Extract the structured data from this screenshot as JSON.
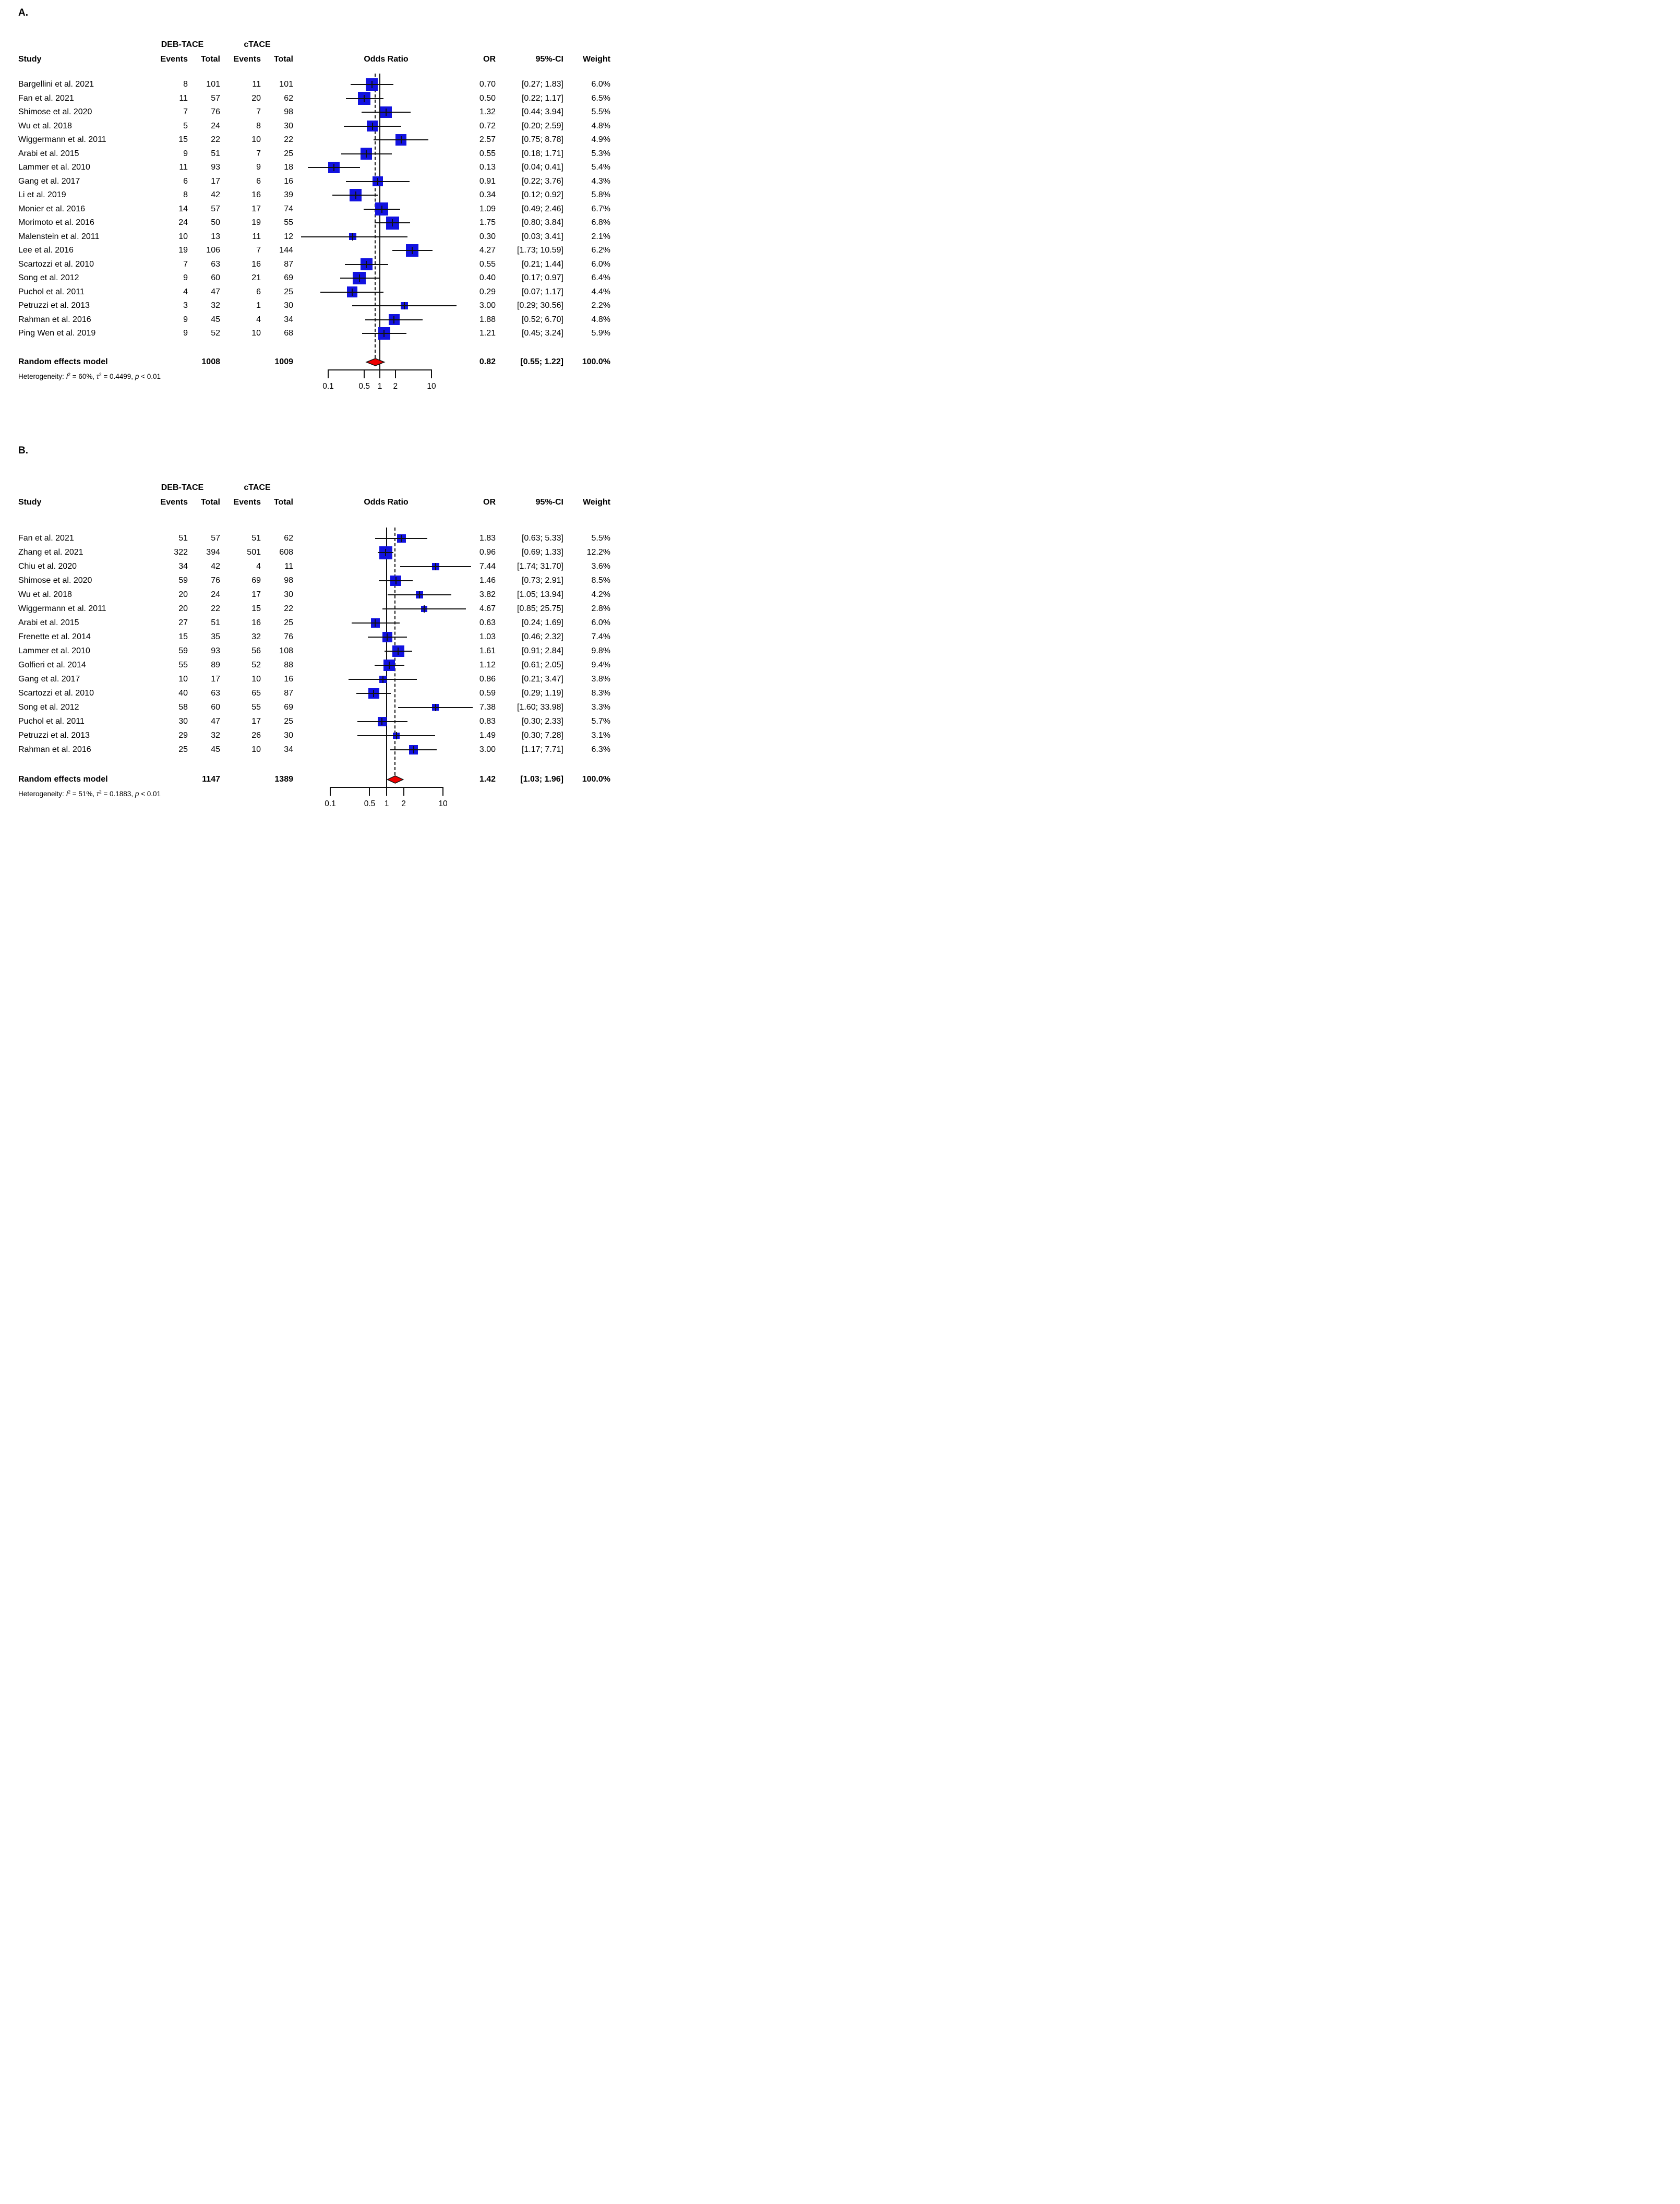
{
  "colors": {
    "square": "#1212e0",
    "diamond": "#ee0000",
    "line": "#111111",
    "text": "#000000"
  },
  "chart_data": [
    {
      "panel_label": "A.",
      "type": "forest",
      "effect_label": "Odds Ratio",
      "columns": {
        "study": "Study",
        "group1": "DEB-TACE",
        "group2": "cTACE",
        "events": "Events",
        "total": "Total",
        "or": "OR",
        "ci": "95%-CI",
        "weight": "Weight"
      },
      "x_axis": {
        "scale": "log",
        "tick_labels": [
          "0.1",
          "0.5",
          "1",
          "2",
          "10"
        ],
        "tick_values": [
          0.1,
          0.5,
          1,
          2,
          10
        ],
        "xlim": [
          0.03,
          30.56
        ]
      },
      "max_weight_pct": 6.8,
      "studies": [
        {
          "name": "Bargellini et al. 2021",
          "events1": 8,
          "total1": 101,
          "events2": 11,
          "total2": 101,
          "or": 0.7,
          "ci_low": 0.27,
          "ci_high": 1.83,
          "weight_pct": 6.0,
          "or_text": "0.70",
          "ci_text": "[0.27; 1.83]",
          "weight_text": "6.0%"
        },
        {
          "name": "Fan et al. 2021",
          "events1": 11,
          "total1": 57,
          "events2": 20,
          "total2": 62,
          "or": 0.5,
          "ci_low": 0.22,
          "ci_high": 1.17,
          "weight_pct": 6.5,
          "or_text": "0.50",
          "ci_text": "[0.22; 1.17]",
          "weight_text": "6.5%"
        },
        {
          "name": "Shimose et al. 2020",
          "events1": 7,
          "total1": 76,
          "events2": 7,
          "total2": 98,
          "or": 1.32,
          "ci_low": 0.44,
          "ci_high": 3.94,
          "weight_pct": 5.5,
          "or_text": "1.32",
          "ci_text": "[0.44; 3.94]",
          "weight_text": "5.5%"
        },
        {
          "name": "Wu et al. 2018",
          "events1": 5,
          "total1": 24,
          "events2": 8,
          "total2": 30,
          "or": 0.72,
          "ci_low": 0.2,
          "ci_high": 2.59,
          "weight_pct": 4.8,
          "or_text": "0.72",
          "ci_text": "[0.20; 2.59]",
          "weight_text": "4.8%"
        },
        {
          "name": "Wiggermann et al. 2011",
          "events1": 15,
          "total1": 22,
          "events2": 10,
          "total2": 22,
          "or": 2.57,
          "ci_low": 0.75,
          "ci_high": 8.78,
          "weight_pct": 4.9,
          "or_text": "2.57",
          "ci_text": "[0.75; 8.78]",
          "weight_text": "4.9%"
        },
        {
          "name": "Arabi et al. 2015",
          "events1": 9,
          "total1": 51,
          "events2": 7,
          "total2": 25,
          "or": 0.55,
          "ci_low": 0.18,
          "ci_high": 1.71,
          "weight_pct": 5.3,
          "or_text": "0.55",
          "ci_text": "[0.18; 1.71]",
          "weight_text": "5.3%"
        },
        {
          "name": "Lammer et al. 2010",
          "events1": 11,
          "total1": 93,
          "events2": 9,
          "total2": 18,
          "or": 0.13,
          "ci_low": 0.04,
          "ci_high": 0.41,
          "weight_pct": 5.4,
          "or_text": "0.13",
          "ci_text": "[0.04; 0.41]",
          "weight_text": "5.4%"
        },
        {
          "name": "Gang et al. 2017",
          "events1": 6,
          "total1": 17,
          "events2": 6,
          "total2": 16,
          "or": 0.91,
          "ci_low": 0.22,
          "ci_high": 3.76,
          "weight_pct": 4.3,
          "or_text": "0.91",
          "ci_text": "[0.22; 3.76]",
          "weight_text": "4.3%"
        },
        {
          "name": "Li et al. 2019",
          "events1": 8,
          "total1": 42,
          "events2": 16,
          "total2": 39,
          "or": 0.34,
          "ci_low": 0.12,
          "ci_high": 0.92,
          "weight_pct": 5.8,
          "or_text": "0.34",
          "ci_text": "[0.12; 0.92]",
          "weight_text": "5.8%"
        },
        {
          "name": "Monier et al. 2016",
          "events1": 14,
          "total1": 57,
          "events2": 17,
          "total2": 74,
          "or": 1.09,
          "ci_low": 0.49,
          "ci_high": 2.46,
          "weight_pct": 6.7,
          "or_text": "1.09",
          "ci_text": "[0.49; 2.46]",
          "weight_text": "6.7%"
        },
        {
          "name": "Morimoto et al. 2016",
          "events1": 24,
          "total1": 50,
          "events2": 19,
          "total2": 55,
          "or": 1.75,
          "ci_low": 0.8,
          "ci_high": 3.84,
          "weight_pct": 6.8,
          "or_text": "1.75",
          "ci_text": "[0.80; 3.84]",
          "weight_text": "6.8%"
        },
        {
          "name": "Malenstein et al. 2011",
          "events1": 10,
          "total1": 13,
          "events2": 11,
          "total2": 12,
          "or": 0.3,
          "ci_low": 0.03,
          "ci_high": 3.41,
          "weight_pct": 2.1,
          "or_text": "0.30",
          "ci_text": "[0.03; 3.41]",
          "weight_text": "2.1%"
        },
        {
          "name": "Lee et al. 2016",
          "events1": 19,
          "total1": 106,
          "events2": 7,
          "total2": 144,
          "or": 4.27,
          "ci_low": 1.73,
          "ci_high": 10.59,
          "weight_pct": 6.2,
          "or_text": "4.27",
          "ci_text": "[1.73; 10.59]",
          "weight_text": "6.2%"
        },
        {
          "name": "Scartozzi et al. 2010",
          "events1": 7,
          "total1": 63,
          "events2": 16,
          "total2": 87,
          "or": 0.55,
          "ci_low": 0.21,
          "ci_high": 1.44,
          "weight_pct": 6.0,
          "or_text": "0.55",
          "ci_text": "[0.21; 1.44]",
          "weight_text": "6.0%"
        },
        {
          "name": "Song et al. 2012",
          "events1": 9,
          "total1": 60,
          "events2": 21,
          "total2": 69,
          "or": 0.4,
          "ci_low": 0.17,
          "ci_high": 0.97,
          "weight_pct": 6.4,
          "or_text": "0.40",
          "ci_text": "[0.17; 0.97]",
          "weight_text": "6.4%"
        },
        {
          "name": "Puchol et al. 2011",
          "events1": 4,
          "total1": 47,
          "events2": 6,
          "total2": 25,
          "or": 0.29,
          "ci_low": 0.07,
          "ci_high": 1.17,
          "weight_pct": 4.4,
          "or_text": "0.29",
          "ci_text": "[0.07; 1.17]",
          "weight_text": "4.4%"
        },
        {
          "name": "Petruzzi et al. 2013",
          "events1": 3,
          "total1": 32,
          "events2": 1,
          "total2": 30,
          "or": 3.0,
          "ci_low": 0.29,
          "ci_high": 30.56,
          "weight_pct": 2.2,
          "or_text": "3.00",
          "ci_text": "[0.29; 30.56]",
          "weight_text": "2.2%"
        },
        {
          "name": "Rahman et al. 2016",
          "events1": 9,
          "total1": 45,
          "events2": 4,
          "total2": 34,
          "or": 1.88,
          "ci_low": 0.52,
          "ci_high": 6.7,
          "weight_pct": 4.8,
          "or_text": "1.88",
          "ci_text": "[0.52; 6.70]",
          "weight_text": "4.8%"
        },
        {
          "name": "Ping Wen et al. 2019",
          "events1": 9,
          "total1": 52,
          "events2": 10,
          "total2": 68,
          "or": 1.21,
          "ci_low": 0.45,
          "ci_high": 3.24,
          "weight_pct": 5.9,
          "or_text": "1.21",
          "ci_text": "[0.45; 3.24]",
          "weight_text": "5.9%"
        }
      ],
      "pooled": {
        "name": "Random effects model",
        "total1": "1008",
        "total2": "1009",
        "or": 0.82,
        "ci_low": 0.55,
        "ci_high": 1.22,
        "or_text": "0.82",
        "ci_text": "[0.55; 1.22]",
        "weight_text": "100.0%"
      },
      "heterogeneity_tokens": [
        {
          "t": "Heterogeneity: "
        },
        {
          "t": "I",
          "i": 1
        },
        {
          "t": "2",
          "s": 1
        },
        {
          "t": " = 60%, "
        },
        {
          "t": "τ",
          "i": 1
        },
        {
          "t": "2",
          "s": 1
        },
        {
          "t": " = 0.4499, "
        },
        {
          "t": "p",
          "i": 1
        },
        {
          "t": " < 0.01"
        }
      ]
    },
    {
      "panel_label": "B.",
      "type": "forest",
      "effect_label": "Odds Ratio",
      "columns": {
        "study": "Study",
        "group1": "DEB-TACE",
        "group2": "cTACE",
        "events": "Events",
        "total": "Total",
        "or": "OR",
        "ci": "95%-CI",
        "weight": "Weight"
      },
      "x_axis": {
        "scale": "log",
        "tick_labels": [
          "0.1",
          "0.5",
          "1",
          "2",
          "10"
        ],
        "tick_values": [
          0.1,
          0.5,
          1,
          2,
          10
        ],
        "xlim": [
          0.21,
          33.98
        ]
      },
      "max_weight_pct": 12.2,
      "studies": [
        {
          "name": "Fan et al. 2021",
          "events1": 51,
          "total1": 57,
          "events2": 51,
          "total2": 62,
          "or": 1.83,
          "ci_low": 0.63,
          "ci_high": 5.33,
          "weight_pct": 5.5,
          "or_text": "1.83",
          "ci_text": "[0.63; 5.33]",
          "weight_text": "5.5%"
        },
        {
          "name": "Zhang et al. 2021",
          "events1": 322,
          "total1": 394,
          "events2": 501,
          "total2": 608,
          "or": 0.96,
          "ci_low": 0.69,
          "ci_high": 1.33,
          "weight_pct": 12.2,
          "or_text": "0.96",
          "ci_text": "[0.69; 1.33]",
          "weight_text": "12.2%"
        },
        {
          "name": "Chiu et al. 2020",
          "events1": 34,
          "total1": 42,
          "events2": 4,
          "total2": 11,
          "or": 7.44,
          "ci_low": 1.74,
          "ci_high": 31.7,
          "weight_pct": 3.6,
          "or_text": "7.44",
          "ci_text": "[1.74; 31.70]",
          "weight_text": "3.6%"
        },
        {
          "name": "Shimose et al. 2020",
          "events1": 59,
          "total1": 76,
          "events2": 69,
          "total2": 98,
          "or": 1.46,
          "ci_low": 0.73,
          "ci_high": 2.91,
          "weight_pct": 8.5,
          "or_text": "1.46",
          "ci_text": "[0.73; 2.91]",
          "weight_text": "8.5%"
        },
        {
          "name": "Wu et al. 2018",
          "events1": 20,
          "total1": 24,
          "events2": 17,
          "total2": 30,
          "or": 3.82,
          "ci_low": 1.05,
          "ci_high": 13.94,
          "weight_pct": 4.2,
          "or_text": "3.82",
          "ci_text": "[1.05; 13.94]",
          "weight_text": "4.2%"
        },
        {
          "name": "Wiggermann et al. 2011",
          "events1": 20,
          "total1": 22,
          "events2": 15,
          "total2": 22,
          "or": 4.67,
          "ci_low": 0.85,
          "ci_high": 25.75,
          "weight_pct": 2.8,
          "or_text": "4.67",
          "ci_text": "[0.85; 25.75]",
          "weight_text": "2.8%"
        },
        {
          "name": "Arabi et al. 2015",
          "events1": 27,
          "total1": 51,
          "events2": 16,
          "total2": 25,
          "or": 0.63,
          "ci_low": 0.24,
          "ci_high": 1.69,
          "weight_pct": 6.0,
          "or_text": "0.63",
          "ci_text": "[0.24; 1.69]",
          "weight_text": "6.0%"
        },
        {
          "name": "Frenette et al. 2014",
          "events1": 15,
          "total1": 35,
          "events2": 32,
          "total2": 76,
          "or": 1.03,
          "ci_low": 0.46,
          "ci_high": 2.32,
          "weight_pct": 7.4,
          "or_text": "1.03",
          "ci_text": "[0.46; 2.32]",
          "weight_text": "7.4%"
        },
        {
          "name": "Lammer et al. 2010",
          "events1": 59,
          "total1": 93,
          "events2": 56,
          "total2": 108,
          "or": 1.61,
          "ci_low": 0.91,
          "ci_high": 2.84,
          "weight_pct": 9.8,
          "or_text": "1.61",
          "ci_text": "[0.91; 2.84]",
          "weight_text": "9.8%"
        },
        {
          "name": "Golfieri et al. 2014",
          "events1": 55,
          "total1": 89,
          "events2": 52,
          "total2": 88,
          "or": 1.12,
          "ci_low": 0.61,
          "ci_high": 2.05,
          "weight_pct": 9.4,
          "or_text": "1.12",
          "ci_text": "[0.61; 2.05]",
          "weight_text": "9.4%"
        },
        {
          "name": "Gang et al. 2017",
          "events1": 10,
          "total1": 17,
          "events2": 10,
          "total2": 16,
          "or": 0.86,
          "ci_low": 0.21,
          "ci_high": 3.47,
          "weight_pct": 3.8,
          "or_text": "0.86",
          "ci_text": "[0.21; 3.47]",
          "weight_text": "3.8%"
        },
        {
          "name": "Scartozzi et al. 2010",
          "events1": 40,
          "total1": 63,
          "events2": 65,
          "total2": 87,
          "or": 0.59,
          "ci_low": 0.29,
          "ci_high": 1.19,
          "weight_pct": 8.3,
          "or_text": "0.59",
          "ci_text": "[0.29; 1.19]",
          "weight_text": "8.3%"
        },
        {
          "name": "Song et al. 2012",
          "events1": 58,
          "total1": 60,
          "events2": 55,
          "total2": 69,
          "or": 7.38,
          "ci_low": 1.6,
          "ci_high": 33.98,
          "weight_pct": 3.3,
          "or_text": "7.38",
          "ci_text": "[1.60; 33.98]",
          "weight_text": "3.3%"
        },
        {
          "name": "Puchol et al. 2011",
          "events1": 30,
          "total1": 47,
          "events2": 17,
          "total2": 25,
          "or": 0.83,
          "ci_low": 0.3,
          "ci_high": 2.33,
          "weight_pct": 5.7,
          "or_text": "0.83",
          "ci_text": "[0.30; 2.33]",
          "weight_text": "5.7%"
        },
        {
          "name": "Petruzzi et al. 2013",
          "events1": 29,
          "total1": 32,
          "events2": 26,
          "total2": 30,
          "or": 1.49,
          "ci_low": 0.3,
          "ci_high": 7.28,
          "weight_pct": 3.1,
          "or_text": "1.49",
          "ci_text": "[0.30; 7.28]",
          "weight_text": "3.1%"
        },
        {
          "name": "Rahman et al. 2016",
          "events1": 25,
          "total1": 45,
          "events2": 10,
          "total2": 34,
          "or": 3.0,
          "ci_low": 1.17,
          "ci_high": 7.71,
          "weight_pct": 6.3,
          "or_text": "3.00",
          "ci_text": "[1.17; 7.71]",
          "weight_text": "6.3%"
        }
      ],
      "pooled": {
        "name": "Random effects model",
        "total1": "1147",
        "total2": "1389",
        "or": 1.42,
        "ci_low": 1.03,
        "ci_high": 1.96,
        "or_text": "1.42",
        "ci_text": "[1.03; 1.96]",
        "weight_text": "100.0%"
      },
      "heterogeneity_tokens": [
        {
          "t": "Heterogeneity: "
        },
        {
          "t": "I",
          "i": 1
        },
        {
          "t": "2",
          "s": 1
        },
        {
          "t": " = 51%, "
        },
        {
          "t": "τ",
          "i": 1
        },
        {
          "t": "2",
          "s": 1
        },
        {
          "t": " = 0.1883, "
        },
        {
          "t": "p",
          "i": 1
        },
        {
          "t": " < 0.01"
        }
      ]
    }
  ]
}
